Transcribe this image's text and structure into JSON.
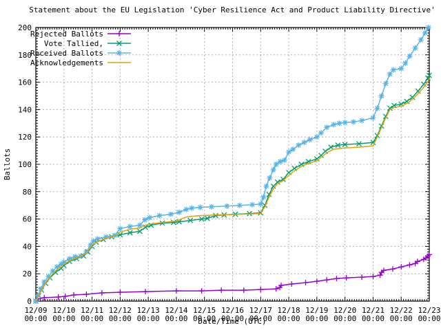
{
  "title": "Statement about the EU Legislation 'Cyber Resilience Act and Product Liability Directive'",
  "colors": {
    "background": "#ffffff",
    "axis": "#000000",
    "grid": "#b0b0b0",
    "rejected": "#9400d3",
    "tallied": "#009e73",
    "received": "#56b4e9",
    "acknowledgements": "#e69f00"
  },
  "chart_data": {
    "type": "line",
    "title": "Statement about the EU Legislation 'Cyber Resilience Act and Product Liability Directive'",
    "xlabel": "Date/Time (UTC)",
    "ylabel": "Ballots",
    "x_unit_days_since": "12/09 00:00 UTC",
    "xlim": [
      0,
      14
    ],
    "ylim": [
      0,
      200
    ],
    "y_tick_step": 20,
    "y_ticks": [
      0,
      20,
      40,
      60,
      80,
      100,
      120,
      140,
      160,
      180,
      200
    ],
    "x_tick_dates": [
      "12/09",
      "12/10",
      "12/11",
      "12/12",
      "12/13",
      "12/14",
      "12/15",
      "12/16",
      "12/17",
      "12/18",
      "12/19",
      "12/20",
      "12/21",
      "12/22",
      "12/23"
    ],
    "x_tick_time": "00:00",
    "grid": true,
    "legend_position": "top-left-inside",
    "series": [
      {
        "name": "Rejected Ballots",
        "color": "#9400d3",
        "marker": "plus",
        "points": [
          [
            0,
            0
          ],
          [
            0.07,
            1.5
          ],
          [
            0.3,
            2.5
          ],
          [
            0.8,
            3
          ],
          [
            1.05,
            3.5
          ],
          [
            1.35,
            4.5
          ],
          [
            1.8,
            5
          ],
          [
            2.35,
            6
          ],
          [
            3.0,
            6.5
          ],
          [
            3.9,
            7
          ],
          [
            5.0,
            7.5
          ],
          [
            5.9,
            7.5
          ],
          [
            6.6,
            8
          ],
          [
            7.4,
            8
          ],
          [
            8.0,
            8.5
          ],
          [
            8.55,
            9
          ],
          [
            8.68,
            10
          ],
          [
            8.73,
            11.5
          ],
          [
            9.1,
            12.5
          ],
          [
            9.6,
            13.5
          ],
          [
            10.0,
            14.5
          ],
          [
            10.35,
            15.5
          ],
          [
            10.7,
            16.5
          ],
          [
            11.05,
            17
          ],
          [
            11.6,
            17.5
          ],
          [
            12.0,
            18
          ],
          [
            12.25,
            19
          ],
          [
            12.3,
            21
          ],
          [
            12.38,
            22.5
          ],
          [
            12.7,
            23.5
          ],
          [
            13.0,
            25
          ],
          [
            13.3,
            26.5
          ],
          [
            13.5,
            27.5
          ],
          [
            13.58,
            29
          ],
          [
            13.8,
            30.5
          ],
          [
            13.88,
            31.5
          ],
          [
            13.95,
            33
          ],
          [
            14.0,
            34
          ]
        ]
      },
      {
        "name": "Vote Tallied,",
        "color": "#009e73",
        "marker": "cross",
        "points": [
          [
            0,
            0
          ],
          [
            0.1,
            4
          ],
          [
            0.2,
            8
          ],
          [
            0.35,
            13
          ],
          [
            0.5,
            17
          ],
          [
            0.7,
            21
          ],
          [
            0.9,
            24
          ],
          [
            1.0,
            26
          ],
          [
            1.2,
            29
          ],
          [
            1.45,
            31
          ],
          [
            1.7,
            33
          ],
          [
            1.85,
            36
          ],
          [
            2.0,
            40
          ],
          [
            2.15,
            43
          ],
          [
            2.4,
            45
          ],
          [
            2.7,
            47
          ],
          [
            3.0,
            48.5
          ],
          [
            3.35,
            50
          ],
          [
            3.7,
            51
          ],
          [
            3.9,
            54
          ],
          [
            4.1,
            55.5
          ],
          [
            4.5,
            57
          ],
          [
            4.9,
            57.5
          ],
          [
            5.1,
            58
          ],
          [
            5.5,
            59
          ],
          [
            5.9,
            60
          ],
          [
            6.1,
            60.5
          ],
          [
            6.4,
            62.5
          ],
          [
            6.7,
            63
          ],
          [
            7.1,
            63.5
          ],
          [
            7.6,
            64
          ],
          [
            8.0,
            64.5
          ],
          [
            8.15,
            70
          ],
          [
            8.3,
            78
          ],
          [
            8.45,
            84
          ],
          [
            8.6,
            87
          ],
          [
            8.8,
            89
          ],
          [
            9.0,
            94
          ],
          [
            9.2,
            97
          ],
          [
            9.45,
            100
          ],
          [
            9.7,
            102
          ],
          [
            10.0,
            104
          ],
          [
            10.15,
            106.5
          ],
          [
            10.3,
            109.5
          ],
          [
            10.5,
            112.5
          ],
          [
            10.75,
            114
          ],
          [
            11.0,
            114.5
          ],
          [
            11.5,
            115
          ],
          [
            12.0,
            116
          ],
          [
            12.15,
            121
          ],
          [
            12.3,
            128
          ],
          [
            12.45,
            135
          ],
          [
            12.6,
            141
          ],
          [
            12.75,
            143
          ],
          [
            13.0,
            144
          ],
          [
            13.2,
            146
          ],
          [
            13.4,
            149
          ],
          [
            13.6,
            153.5
          ],
          [
            13.8,
            158.5
          ],
          [
            13.95,
            163
          ],
          [
            14.0,
            165
          ]
        ]
      },
      {
        "name": "Received Ballots",
        "color": "#56b4e9",
        "marker": "star",
        "points": [
          [
            0,
            0
          ],
          [
            0.08,
            4
          ],
          [
            0.18,
            9
          ],
          [
            0.3,
            14
          ],
          [
            0.45,
            18
          ],
          [
            0.6,
            22
          ],
          [
            0.75,
            25
          ],
          [
            0.9,
            27
          ],
          [
            1.0,
            28.5
          ],
          [
            1.2,
            31
          ],
          [
            1.4,
            32.5
          ],
          [
            1.6,
            33
          ],
          [
            1.8,
            36
          ],
          [
            1.95,
            41
          ],
          [
            2.05,
            44
          ],
          [
            2.2,
            45.5
          ],
          [
            2.5,
            47
          ],
          [
            2.8,
            48
          ],
          [
            3.0,
            53
          ],
          [
            3.35,
            54.5
          ],
          [
            3.7,
            55.5
          ],
          [
            3.88,
            59.5
          ],
          [
            4.05,
            61
          ],
          [
            4.4,
            62.5
          ],
          [
            4.8,
            63.5
          ],
          [
            5.1,
            65
          ],
          [
            5.35,
            67
          ],
          [
            5.55,
            68
          ],
          [
            5.85,
            68.5
          ],
          [
            6.25,
            69
          ],
          [
            6.8,
            69.5
          ],
          [
            7.25,
            70
          ],
          [
            7.7,
            70.5
          ],
          [
            8.0,
            71
          ],
          [
            8.1,
            76
          ],
          [
            8.2,
            84
          ],
          [
            8.32,
            90
          ],
          [
            8.45,
            96
          ],
          [
            8.55,
            100
          ],
          [
            8.7,
            102
          ],
          [
            8.85,
            103
          ],
          [
            9.0,
            109
          ],
          [
            9.15,
            111
          ],
          [
            9.35,
            114
          ],
          [
            9.55,
            116
          ],
          [
            9.75,
            118
          ],
          [
            10.0,
            120
          ],
          [
            10.15,
            123
          ],
          [
            10.35,
            127
          ],
          [
            10.6,
            129
          ],
          [
            10.8,
            130
          ],
          [
            11.0,
            130.5
          ],
          [
            11.3,
            131
          ],
          [
            11.6,
            132
          ],
          [
            12.0,
            134
          ],
          [
            12.15,
            141
          ],
          [
            12.3,
            150
          ],
          [
            12.45,
            159
          ],
          [
            12.6,
            166
          ],
          [
            12.72,
            169
          ],
          [
            13.0,
            170
          ],
          [
            13.15,
            174
          ],
          [
            13.3,
            179
          ],
          [
            13.5,
            185
          ],
          [
            13.7,
            191
          ],
          [
            13.85,
            196
          ],
          [
            13.97,
            200
          ]
        ]
      },
      {
        "name": "Acknowledgements",
        "color": "#e69f00",
        "marker": "none",
        "points": [
          [
            0,
            0
          ],
          [
            0.12,
            5
          ],
          [
            0.25,
            10
          ],
          [
            0.4,
            15
          ],
          [
            0.6,
            20
          ],
          [
            0.8,
            24
          ],
          [
            1.0,
            27
          ],
          [
            1.25,
            30
          ],
          [
            1.5,
            32
          ],
          [
            1.8,
            35
          ],
          [
            2.0,
            41
          ],
          [
            2.2,
            43.5
          ],
          [
            2.5,
            46
          ],
          [
            2.8,
            47.5
          ],
          [
            3.0,
            50.5
          ],
          [
            3.35,
            52.5
          ],
          [
            3.7,
            53.5
          ],
          [
            3.9,
            55.5
          ],
          [
            4.1,
            56.5
          ],
          [
            4.5,
            57.5
          ],
          [
            5.0,
            58.5
          ],
          [
            5.35,
            61.5
          ],
          [
            5.8,
            62.5
          ],
          [
            6.5,
            63
          ],
          [
            7.3,
            63.5
          ],
          [
            8.0,
            64
          ],
          [
            8.15,
            69
          ],
          [
            8.3,
            76
          ],
          [
            8.45,
            82
          ],
          [
            8.6,
            86
          ],
          [
            8.8,
            88
          ],
          [
            9.0,
            92
          ],
          [
            9.25,
            96
          ],
          [
            9.5,
            99
          ],
          [
            9.75,
            101
          ],
          [
            10.0,
            102.5
          ],
          [
            10.2,
            106
          ],
          [
            10.4,
            109
          ],
          [
            10.6,
            111
          ],
          [
            11.0,
            112
          ],
          [
            11.5,
            112.5
          ],
          [
            12.0,
            113.5
          ],
          [
            12.15,
            120
          ],
          [
            12.3,
            127
          ],
          [
            12.45,
            134
          ],
          [
            12.6,
            140
          ],
          [
            12.75,
            141.5
          ],
          [
            13.0,
            142.5
          ],
          [
            13.25,
            145
          ],
          [
            13.5,
            149.5
          ],
          [
            13.75,
            155
          ],
          [
            13.95,
            160.5
          ],
          [
            14.0,
            163
          ]
        ]
      }
    ]
  }
}
